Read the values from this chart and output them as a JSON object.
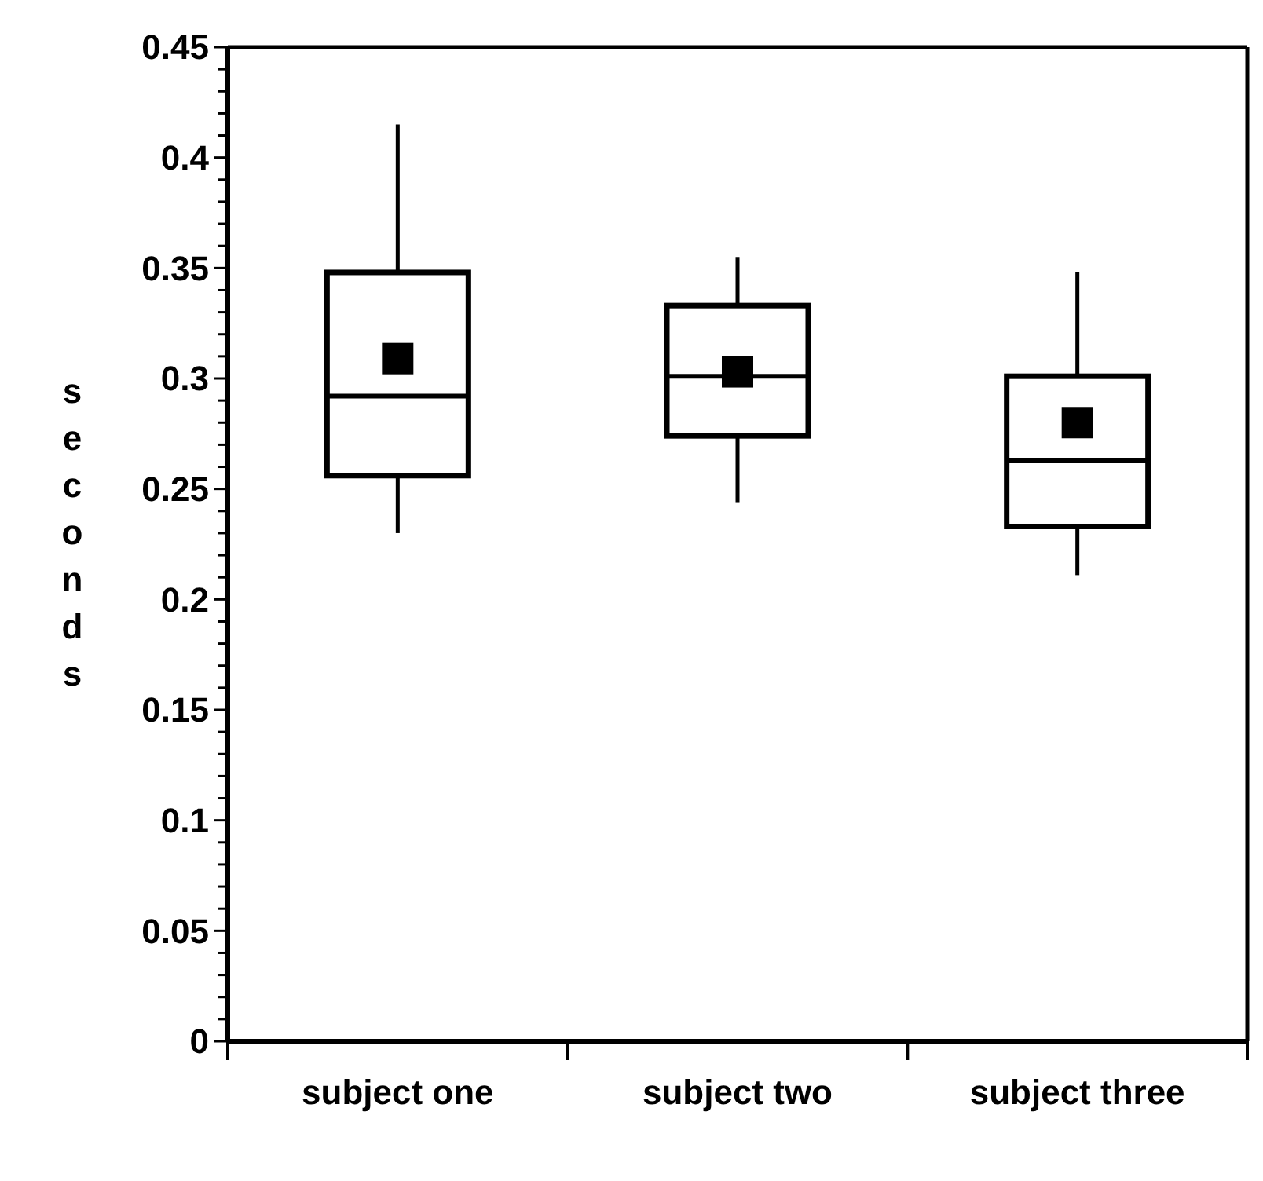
{
  "chart_data": {
    "type": "box",
    "ylabel": "seconds",
    "categories": [
      "subject one",
      "subject two",
      "subject three"
    ],
    "boxes": [
      {
        "low": 0.23,
        "q1": 0.256,
        "median": 0.292,
        "q3": 0.348,
        "high": 0.415,
        "mean": 0.309
      },
      {
        "low": 0.244,
        "q1": 0.274,
        "median": 0.301,
        "q3": 0.333,
        "high": 0.355,
        "mean": 0.303
      },
      {
        "low": 0.211,
        "q1": 0.233,
        "median": 0.263,
        "q3": 0.301,
        "high": 0.348,
        "mean": 0.28
      }
    ],
    "ylim": [
      0,
      0.45
    ],
    "yticks": [
      0,
      {
        "value": 0.01,
        "label": null
      },
      {
        "value": 0.02,
        "label": null
      },
      {
        "value": 0.03,
        "label": null
      },
      {
        "value": 0.04,
        "label": null
      },
      0.05,
      {
        "value": 0.06,
        "label": null
      },
      {
        "value": 0.07,
        "label": null
      },
      {
        "value": 0.08,
        "label": null
      },
      {
        "value": 0.09,
        "label": null
      },
      0.1,
      {
        "value": 0.11,
        "label": null
      },
      {
        "value": 0.12,
        "label": null
      },
      {
        "value": 0.13,
        "label": null
      },
      {
        "value": 0.14,
        "label": null
      },
      0.15,
      {
        "value": 0.16,
        "label": null
      },
      {
        "value": 0.17,
        "label": null
      },
      {
        "value": 0.18,
        "label": null
      },
      {
        "value": 0.19,
        "label": null
      },
      0.2,
      {
        "value": 0.21,
        "label": null
      },
      {
        "value": 0.22,
        "label": null
      },
      {
        "value": 0.23,
        "label": null
      },
      {
        "value": 0.24,
        "label": null
      },
      0.25,
      {
        "value": 0.26,
        "label": null
      },
      {
        "value": 0.27,
        "label": null
      },
      {
        "value": 0.28,
        "label": null
      },
      {
        "value": 0.29,
        "label": null
      },
      0.3,
      {
        "value": 0.31,
        "label": null
      },
      {
        "value": 0.32,
        "label": null
      },
      {
        "value": 0.33,
        "label": null
      },
      {
        "value": 0.34,
        "label": null
      },
      0.35,
      {
        "value": 0.36,
        "label": null
      },
      {
        "value": 0.37,
        "label": null
      },
      {
        "value": 0.38,
        "label": null
      },
      {
        "value": 0.39,
        "label": null
      },
      0.4,
      {
        "value": 0.41,
        "label": null
      },
      {
        "value": 0.42,
        "label": null
      },
      {
        "value": 0.43,
        "label": null
      },
      {
        "value": 0.44,
        "label": null
      },
      0.45
    ],
    "marker": "square"
  }
}
